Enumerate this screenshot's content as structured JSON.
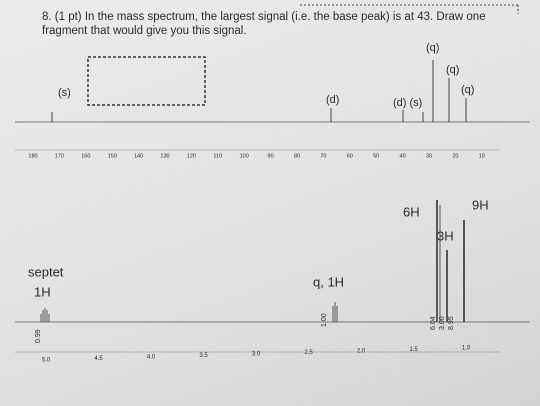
{
  "question": {
    "text": "8. (1 pt) In the mass spectrum, the largest signal (i.e. the base peak) is at 43.  Draw one fragment that would give you this signal."
  },
  "carbon_spectrum": {
    "peak_labels": [
      "(s)",
      "(d)",
      "(d) (s)",
      "(q)",
      "(q)",
      "(q)"
    ],
    "axis_ticks": [
      "180",
      "170",
      "160",
      "150",
      "140",
      "130",
      "120",
      "110",
      "100",
      "90",
      "80",
      "70",
      "60",
      "50",
      "40",
      "30",
      "20",
      "10"
    ]
  },
  "proton_spectrum": {
    "peak_labels": [
      "septet",
      "1H",
      "q, 1H",
      "6H",
      "3H",
      "9H"
    ],
    "integrals": [
      "0.99",
      "1.00",
      "6.04",
      "3.00",
      "8.95"
    ],
    "axis_ticks": [
      "5.0",
      "4.5",
      "4.0",
      "3.5",
      "3.0",
      "2.5",
      "2.0",
      "1.5",
      "1.0"
    ]
  }
}
